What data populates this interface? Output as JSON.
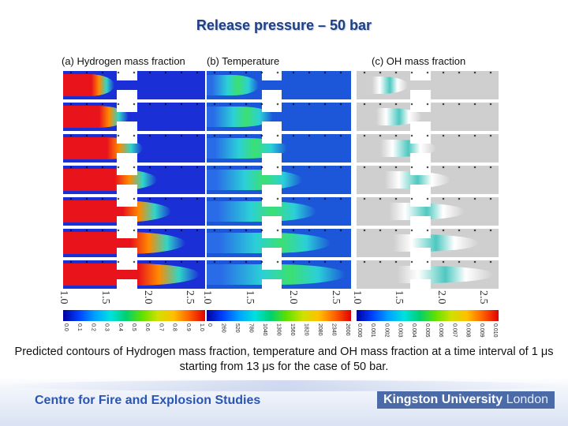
{
  "title": "Release pressure – 50 bar",
  "panels": {
    "a": "(a) Hydrogen mass fraction",
    "b": "(b) Temperature",
    "c": "(c) OH mass fraction"
  },
  "axis_ticks": [
    "1.0",
    "1.5",
    "2.0",
    "2.5"
  ],
  "colorbars": {
    "a": [
      "0.0",
      "0.1",
      "0.2",
      "0.3",
      "0.4",
      "0.5",
      "0.6",
      "0.7",
      "0.8",
      "0.9",
      "1.0"
    ],
    "b": [
      "0",
      "260",
      "520",
      "780",
      "1040",
      "1300",
      "1560",
      "1820",
      "2080",
      "2340",
      "2600"
    ],
    "c": [
      "0.000",
      "0.001",
      "0.002",
      "0.003",
      "0.004",
      "0.005",
      "0.006",
      "0.007",
      "0.008",
      "0.009",
      "0.010"
    ]
  },
  "caption": "Predicted contours of Hydrogen mass fraction, temperature and OH mass fraction at a time interval of 1 μs starting from 13 μs for the case of 50 bar.",
  "footer": {
    "centre_name": "Centre for Fire and Explosion Studies",
    "university_bold": "Kingston University",
    "university_light": "London"
  },
  "colors": {
    "title": "#1f3f86",
    "hydrogen_bg": "#1a2fd6",
    "hydrogen_jet": "#e8131b",
    "temperature_bg": "#1b57d8",
    "oh_bg": "#cfcfcf",
    "footer_text": "#2a55b3"
  }
}
